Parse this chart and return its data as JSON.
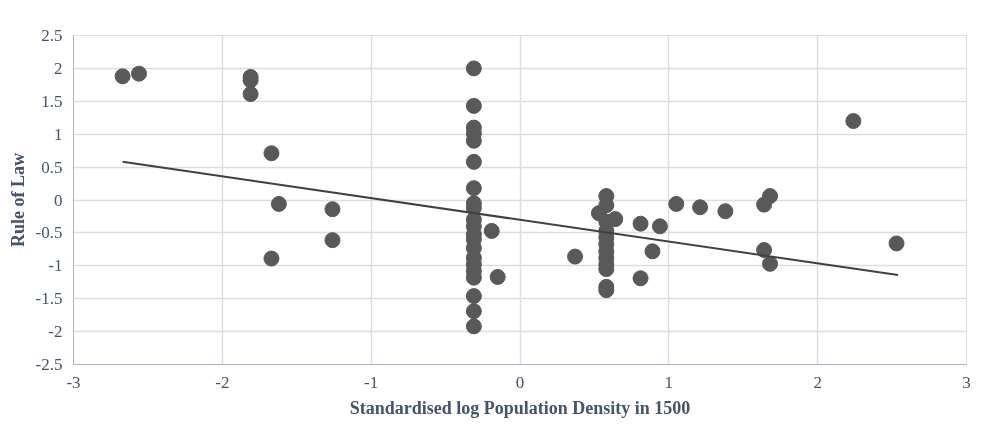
{
  "chart_data": {
    "type": "scatter",
    "xlabel": "Standardised log Population Density in 1500",
    "ylabel": "Rule of Law",
    "xlim": [
      -3,
      3
    ],
    "ylim": [
      -2.5,
      2.5
    ],
    "xticks": [
      -3,
      -2,
      -1,
      0,
      1,
      2,
      3
    ],
    "yticks": [
      -2.5,
      -2,
      -1.5,
      -1,
      -0.5,
      0,
      0.5,
      1,
      1.5,
      2,
      2.5
    ],
    "grid": true,
    "series": [
      {
        "marker": "circle",
        "color": "#595959",
        "x": [
          -2.67,
          -2.56,
          -1.81,
          -1.81,
          -1.81,
          -1.67,
          -1.62,
          -1.26,
          -1.26,
          -1.67,
          -0.31,
          -0.31,
          -0.31,
          -0.31,
          -0.31,
          -0.31,
          -0.31,
          -0.31,
          -0.31,
          -0.31,
          -0.31,
          -0.31,
          -0.31,
          -0.31,
          -0.31,
          -0.31,
          -0.31,
          -0.31,
          -0.31,
          -0.31,
          -0.31,
          -0.19,
          -0.15,
          0.37,
          0.58,
          0.58,
          0.58,
          0.58,
          0.58,
          0.58,
          0.58,
          0.58,
          0.58,
          0.58,
          0.58,
          0.58,
          0.53,
          0.64,
          0.81,
          0.89,
          0.94,
          0.81,
          1.05,
          1.21,
          1.38,
          1.64,
          1.68,
          1.64,
          1.68,
          2.24,
          2.53
        ],
        "values": [
          1.88,
          1.92,
          1.87,
          1.82,
          1.61,
          0.71,
          -0.06,
          -0.14,
          -0.61,
          -0.89,
          2.0,
          1.43,
          1.1,
          1.01,
          0.9,
          0.58,
          0.18,
          -0.05,
          -0.12,
          -0.3,
          -0.4,
          -0.52,
          -0.6,
          -0.73,
          -0.88,
          -0.98,
          -1.08,
          -1.18,
          -1.46,
          -1.69,
          -1.92,
          -0.47,
          -1.17,
          -0.86,
          0.06,
          -0.08,
          -0.33,
          -0.47,
          -0.57,
          -0.67,
          -0.78,
          -0.88,
          -0.98,
          -1.05,
          -1.32,
          -1.37,
          -0.2,
          -0.29,
          -0.36,
          -0.78,
          -0.4,
          -1.19,
          -0.06,
          -0.11,
          -0.17,
          -0.07,
          0.06,
          -0.76,
          -0.97,
          1.2,
          -0.66
        ]
      },
      {
        "type": "line",
        "color": "#404040",
        "x": [
          -2.67,
          2.54
        ],
        "values": [
          0.58,
          -1.14
        ]
      }
    ]
  }
}
